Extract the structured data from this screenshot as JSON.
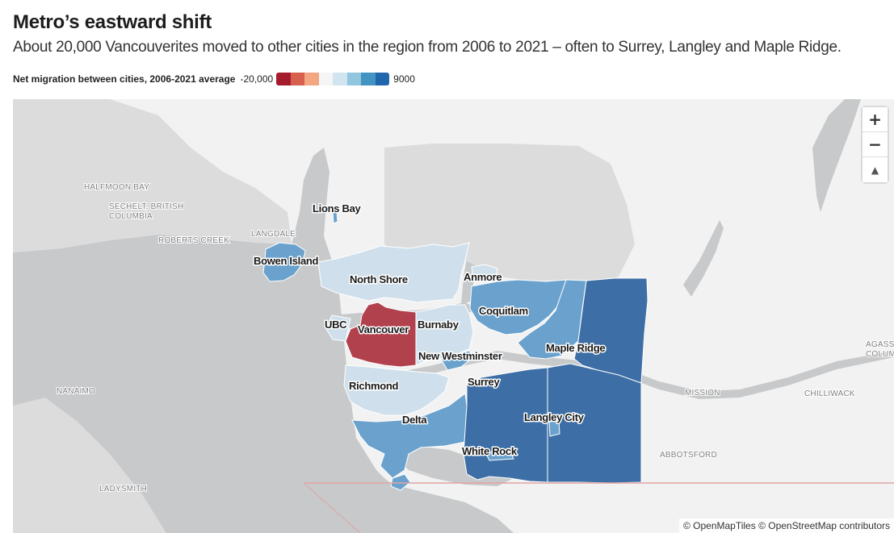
{
  "header": {
    "title": "Metro’s eastward shift",
    "subtitle": "About 20,000 Vancouverites moved to other cities in the region from 2006 to 2021 – often to Surrey, Langley and Maple Ridge."
  },
  "legend": {
    "title": "Net migration between cities, 2006-2021 average",
    "min_label": "-20,000",
    "max_label": "9000",
    "colors": [
      "#a51d2d",
      "#d6604d",
      "#f4a582",
      "#f5f5f5",
      "#d1e5f0",
      "#92c5de",
      "#4393c3",
      "#2166ac"
    ]
  },
  "colors": {
    "water": "#c7c9cb",
    "land": "#f2f2f2",
    "other_land": "#dcdcdc",
    "vancouver": "#b2414e",
    "light_blue": "#cfe0ec",
    "mid_blue": "#6aa2cd",
    "dark_blue": "#3d6fa6"
  },
  "cities": {
    "lions_bay": "Lions Bay",
    "bowen_island": "Bowen Island",
    "north_shore": "North Shore",
    "anmore": "Anmore",
    "coquitlam": "Coquitlam",
    "ubc": "UBC",
    "vancouver": "Vancouver",
    "burnaby": "Burnaby",
    "new_westminster": "New Westminster",
    "maple_ridge": "Maple Ridge",
    "richmond": "Richmond",
    "surrey": "Surrey",
    "delta": "Delta",
    "langley_city": "Langley City",
    "white_rock": "White Rock"
  },
  "places": {
    "halfmoon_bay": "HALFMOON BAY",
    "sechelt_1": "SECHELT, BRITISH",
    "sechelt_2": "COLUMBIA",
    "langdale": "LANGDALE",
    "roberts_creek": "ROBERTS CREEK",
    "nanaimo": "NANAIMO",
    "ladysmith": "LADYSMITH",
    "mission": "MISSION",
    "chilliwack": "CHILLIWACK",
    "abbotsford": "ABBOTSFORD",
    "agassiz_1": "AGASSIZ",
    "agassiz_2": "COLUMBIA"
  },
  "controls": {
    "zoom_in": "+",
    "zoom_out": "−",
    "reset_north": "▲"
  },
  "attribution": "© OpenMapTiles © OpenStreetMap contributors"
}
